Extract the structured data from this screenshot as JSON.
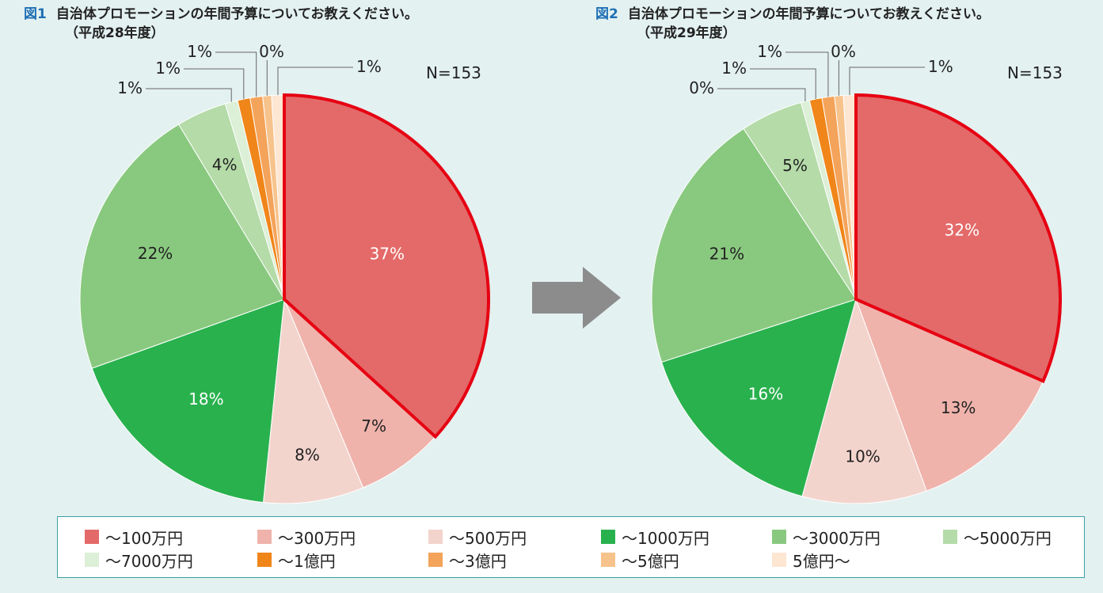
{
  "title1": {
    "num": "図1",
    "text": "自治体プロモーションの年間予算についてお教えください。",
    "sub": "（平成28年度）"
  },
  "title2": {
    "num": "図2",
    "text": "自治体プロモーションの年間予算についてお教えください。",
    "sub": "（平成29年度）"
  },
  "legend": [
    {
      "label": "～100万円",
      "color": "#e36a69"
    },
    {
      "label": "～300万円",
      "color": "#efb3ab"
    },
    {
      "label": "～500万円",
      "color": "#f3d4cd"
    },
    {
      "label": "～1000万円",
      "color": "#29b14e"
    },
    {
      "label": "～3000万円",
      "color": "#89c97f"
    },
    {
      "label": "～5000万円",
      "color": "#b4dba8"
    },
    {
      "label": "～7000万円",
      "color": "#dcefd7"
    },
    {
      "label": "～1億円",
      "color": "#f08519"
    },
    {
      "label": "～3億円",
      "color": "#f4a35a"
    },
    {
      "label": "～5億円",
      "color": "#f7c38c"
    },
    {
      "label": "5億円～",
      "color": "#fde6d2"
    }
  ],
  "arrow_icon": "right-arrow-icon",
  "highlight_color": "#e60012",
  "chart_data": [
    {
      "type": "pie",
      "title": "図1 自治体プロモーションの年間予算についてお教えください。（平成28年度）",
      "n_label": "N=153",
      "highlighted": "～100万円",
      "slices": [
        {
          "category": "～100万円",
          "value": 37,
          "label": "37%"
        },
        {
          "category": "～300万円",
          "value": 7,
          "label": "7%"
        },
        {
          "category": "～500万円",
          "value": 8,
          "label": "8%"
        },
        {
          "category": "～1000万円",
          "value": 18,
          "label": "18%"
        },
        {
          "category": "～3000万円",
          "value": 22,
          "label": "22%"
        },
        {
          "category": "～5000万円",
          "value": 4,
          "label": "4%"
        },
        {
          "category": "～7000万円",
          "value": 1,
          "label": "1%"
        },
        {
          "category": "～1億円",
          "value": 1,
          "label": "1%"
        },
        {
          "category": "～3億円",
          "value": 1,
          "label": "1%"
        },
        {
          "category": "～5億円",
          "value": 0,
          "label": "0%"
        },
        {
          "category": "5億円～",
          "value": 1,
          "label": "1%"
        }
      ]
    },
    {
      "type": "pie",
      "title": "図2 自治体プロモーションの年間予算についてお教えください。（平成29年度）",
      "n_label": "N=153",
      "highlighted": "～100万円",
      "slices": [
        {
          "category": "～100万円",
          "value": 32,
          "label": "32%"
        },
        {
          "category": "～300万円",
          "value": 13,
          "label": "13%"
        },
        {
          "category": "～500万円",
          "value": 10,
          "label": "10%"
        },
        {
          "category": "～1000万円",
          "value": 16,
          "label": "16%"
        },
        {
          "category": "～3000万円",
          "value": 21,
          "label": "21%"
        },
        {
          "category": "～5000万円",
          "value": 5,
          "label": "5%"
        },
        {
          "category": "～7000万円",
          "value": 0,
          "label": "0%"
        },
        {
          "category": "～1億円",
          "value": 1,
          "label": "1%"
        },
        {
          "category": "～3億円",
          "value": 1,
          "label": "1%"
        },
        {
          "category": "～5億円",
          "value": 0,
          "label": "0%"
        },
        {
          "category": "5億円～",
          "value": 1,
          "label": "1%"
        }
      ]
    }
  ]
}
